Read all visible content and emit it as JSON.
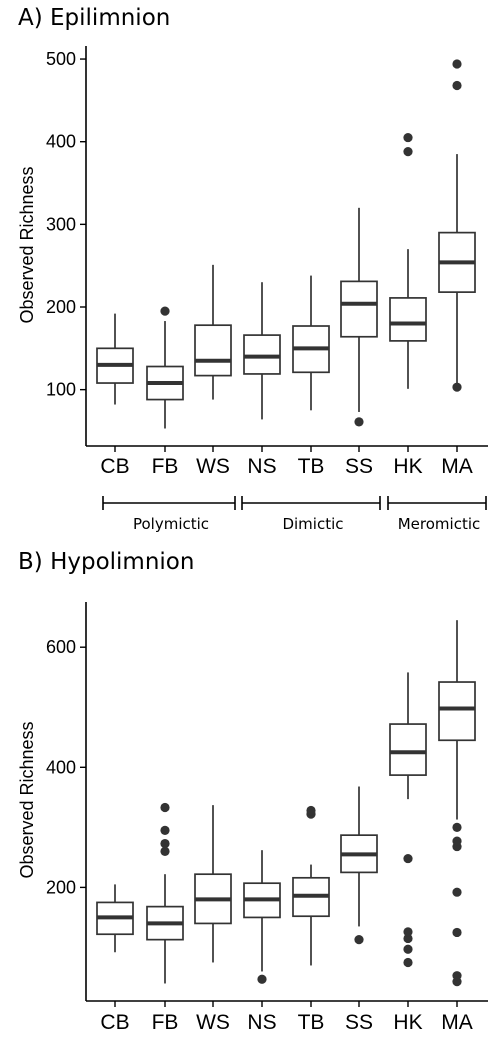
{
  "chart_data": [
    {
      "type": "boxplot",
      "title": "A) Epilimnion",
      "ylabel": "Observed Richness",
      "categories": [
        "CB",
        "FB",
        "WS",
        "NS",
        "TB",
        "SS",
        "HK",
        "MA"
      ],
      "yticks": [
        100,
        200,
        300,
        400,
        500
      ],
      "ylim": [
        30,
        515
      ],
      "boxes": [
        {
          "category": "CB",
          "whislo": 82,
          "q1": 108,
          "med": 130,
          "q3": 150,
          "whishi": 192,
          "fliers": []
        },
        {
          "category": "FB",
          "whislo": 53,
          "q1": 88,
          "med": 108,
          "q3": 128,
          "whishi": 183,
          "fliers": [
            195
          ]
        },
        {
          "category": "WS",
          "whislo": 88,
          "q1": 117,
          "med": 135,
          "q3": 178,
          "whishi": 251,
          "fliers": []
        },
        {
          "category": "NS",
          "whislo": 64,
          "q1": 119,
          "med": 140,
          "q3": 166,
          "whishi": 230,
          "fliers": []
        },
        {
          "category": "TB",
          "whislo": 75,
          "q1": 121,
          "med": 150,
          "q3": 177,
          "whishi": 238,
          "fliers": []
        },
        {
          "category": "SS",
          "whislo": 73,
          "q1": 164,
          "med": 204,
          "q3": 231,
          "whishi": 320,
          "fliers": [
            61
          ]
        },
        {
          "category": "HK",
          "whislo": 101,
          "q1": 159,
          "med": 180,
          "q3": 211,
          "whishi": 270,
          "fliers": [
            388,
            405
          ]
        },
        {
          "category": "MA",
          "whislo": 103,
          "q1": 218,
          "med": 254,
          "q3": 290,
          "whishi": 385,
          "fliers": [
            103,
            468,
            494
          ]
        }
      ],
      "groups": [
        {
          "label": "Polymictic",
          "from": "CB",
          "to": "WS"
        },
        {
          "label": "Dimictic",
          "from": "NS",
          "to": "SS"
        },
        {
          "label": "Meromictic",
          "from": "HK",
          "to": "MA"
        }
      ]
    },
    {
      "type": "boxplot",
      "title": "B) Hypolimnion",
      "ylabel": "Observed Richness",
      "categories": [
        "CB",
        "FB",
        "WS",
        "NS",
        "TB",
        "SS",
        "HK",
        "MA"
      ],
      "yticks": [
        200,
        400,
        600
      ],
      "ylim": [
        30,
        685
      ],
      "boxes": [
        {
          "category": "CB",
          "whislo": 92,
          "q1": 122,
          "med": 150,
          "q3": 175,
          "whishi": 205,
          "fliers": []
        },
        {
          "category": "FB",
          "whislo": 40,
          "q1": 113,
          "med": 140,
          "q3": 168,
          "whishi": 222,
          "fliers": [
            260,
            273,
            295,
            333
          ]
        },
        {
          "category": "WS",
          "whislo": 75,
          "q1": 140,
          "med": 180,
          "q3": 222,
          "whishi": 337,
          "fliers": []
        },
        {
          "category": "NS",
          "whislo": 60,
          "q1": 150,
          "med": 180,
          "q3": 207,
          "whishi": 262,
          "fliers": [
            47
          ]
        },
        {
          "category": "TB",
          "whislo": 70,
          "q1": 152,
          "med": 186,
          "q3": 216,
          "whishi": 238,
          "fliers": [
            322,
            328
          ]
        },
        {
          "category": "SS",
          "whislo": 135,
          "q1": 225,
          "med": 255,
          "q3": 287,
          "whishi": 368,
          "fliers": [
            113
          ]
        },
        {
          "category": "HK",
          "whislo": 347,
          "q1": 387,
          "med": 425,
          "q3": 472,
          "whishi": 558,
          "fliers": [
            75,
            97,
            115,
            126,
            248
          ]
        },
        {
          "category": "MA",
          "whislo": 313,
          "q1": 445,
          "med": 498,
          "q3": 542,
          "whishi": 645,
          "fliers": [
            43,
            53,
            125,
            192,
            268,
            277,
            300
          ]
        }
      ]
    }
  ]
}
